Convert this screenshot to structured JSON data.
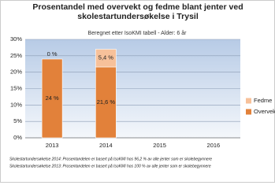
{
  "chart_data": {
    "type": "stacked-bar",
    "title": "Prosentandel med overvekt og fedme blant jenter ved skolestartundersøkelse i Trysil",
    "subtitle": "Beregnet etter IsoKMI tabell - Alder: 6 år",
    "categories": [
      "2013",
      "2014",
      "2015",
      "2016"
    ],
    "series": [
      {
        "name": "Overvekt",
        "color": "#e2813a",
        "values": [
          24,
          21.6,
          null,
          null
        ],
        "value_labels": [
          "24 %",
          "21,6 %",
          null,
          null
        ]
      },
      {
        "name": "Fedme",
        "color": "#f7c19a",
        "values": [
          0,
          5.4,
          null,
          null
        ],
        "value_labels": [
          "0 %",
          "5,4 %",
          null,
          null
        ]
      }
    ],
    "ylim": [
      0,
      30
    ],
    "yticks": [
      {
        "value": 0,
        "label": "0%"
      },
      {
        "value": 5,
        "label": "5%"
      },
      {
        "value": 10,
        "label": "10%"
      },
      {
        "value": 15,
        "label": "15%"
      },
      {
        "value": 20,
        "label": "20%"
      },
      {
        "value": 25,
        "label": "25%"
      },
      {
        "value": 30,
        "label": "30%"
      }
    ],
    "grid": true,
    "legend": "right",
    "notes": [
      "Skolestartundersøkelse 2014: Prosentandelen er basert på IsoKMI hos 96,2 % av alle jenter som er skolebegynnere",
      "Skolestartundersøkelse 2013: Prosentandelen er basert på IsoKMI hos 100 % av alle jenter som er skolebegynnere"
    ]
  }
}
